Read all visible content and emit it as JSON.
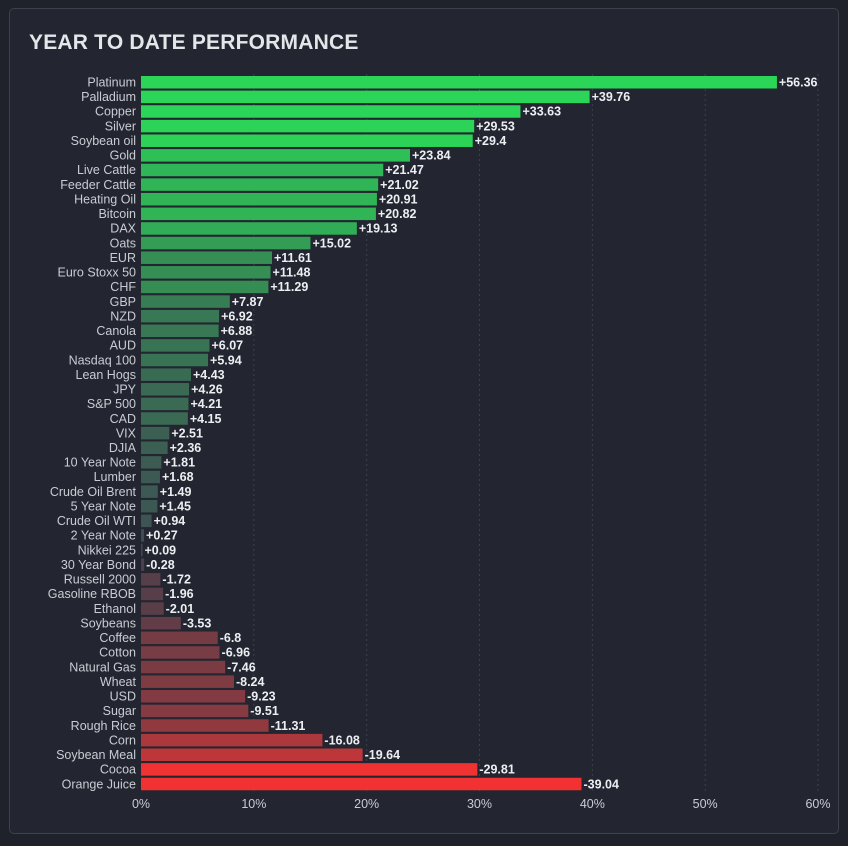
{
  "page": {
    "title": "YEAR TO DATE PERFORMANCE"
  },
  "colors": {
    "background": "#1f222a",
    "panel": "#232630",
    "label_text": "#c9ccd3",
    "value_text": "#eceef1",
    "gridline": "#3c4150",
    "positive_strong": "#2bd557",
    "positive_neutral": "#3e4a52",
    "negative_neutral": "#4a3f4a",
    "negative_strong": "#f23232"
  },
  "chart_data": {
    "type": "bar",
    "orientation": "horizontal",
    "title": "YEAR TO DATE PERFORMANCE",
    "xlabel": "",
    "ylabel": "",
    "xlim": [
      0,
      60
    ],
    "xticks": [
      0,
      10,
      20,
      30,
      40,
      50,
      60
    ],
    "xtick_labels": [
      "0%",
      "10%",
      "20%",
      "30%",
      "40%",
      "50%",
      "60%"
    ],
    "bar_length": "absolute value",
    "grid": "vertical dashed",
    "legend": "none",
    "categories": [
      "Platinum",
      "Palladium",
      "Copper",
      "Silver",
      "Soybean oil",
      "Gold",
      "Live Cattle",
      "Feeder Cattle",
      "Heating Oil",
      "Bitcoin",
      "DAX",
      "Oats",
      "EUR",
      "Euro Stoxx 50",
      "CHF",
      "GBP",
      "NZD",
      "Canola",
      "AUD",
      "Nasdaq 100",
      "Lean Hogs",
      "JPY",
      "S&P 500",
      "CAD",
      "VIX",
      "DJIA",
      "10 Year Note",
      "Lumber",
      "Crude Oil Brent",
      "5 Year Note",
      "Crude Oil WTI",
      "2 Year Note",
      "Nikkei 225",
      "30 Year Bond",
      "Russell 2000",
      "Gasoline RBOB",
      "Ethanol",
      "Soybeans",
      "Coffee",
      "Cotton",
      "Natural Gas",
      "Wheat",
      "USD",
      "Sugar",
      "Rough Rice",
      "Corn",
      "Soybean Meal",
      "Cocoa",
      "Orange Juice"
    ],
    "values": [
      56.36,
      39.76,
      33.63,
      29.53,
      29.4,
      23.84,
      21.47,
      21.02,
      20.91,
      20.82,
      19.13,
      15.02,
      11.61,
      11.48,
      11.29,
      7.87,
      6.92,
      6.88,
      6.07,
      5.94,
      4.43,
      4.26,
      4.21,
      4.15,
      2.51,
      2.36,
      1.81,
      1.68,
      1.49,
      1.45,
      0.94,
      0.27,
      0.09,
      -0.28,
      -1.72,
      -1.96,
      -2.01,
      -3.53,
      -6.8,
      -6.96,
      -7.46,
      -8.24,
      -9.23,
      -9.51,
      -11.31,
      -16.08,
      -19.64,
      -29.81,
      -39.04
    ],
    "value_labels": [
      "+56.36",
      "+39.76",
      "+33.63",
      "+29.53",
      "+29.4",
      "+23.84",
      "+21.47",
      "+21.02",
      "+20.91",
      "+20.82",
      "+19.13",
      "+15.02",
      "+11.61",
      "+11.48",
      "+11.29",
      "+7.87",
      "+6.92",
      "+6.88",
      "+6.07",
      "+5.94",
      "+4.43",
      "+4.26",
      "+4.21",
      "+4.15",
      "+2.51",
      "+2.36",
      "+1.81",
      "+1.68",
      "+1.49",
      "+1.45",
      "+0.94",
      "+0.27",
      "+0.09",
      "-0.28",
      "-1.72",
      "-1.96",
      "-2.01",
      "-3.53",
      "-6.8",
      "-6.96",
      "-7.46",
      "-8.24",
      "-9.23",
      "-9.51",
      "-11.31",
      "-16.08",
      "-19.64",
      "-29.81",
      "-39.04"
    ]
  }
}
